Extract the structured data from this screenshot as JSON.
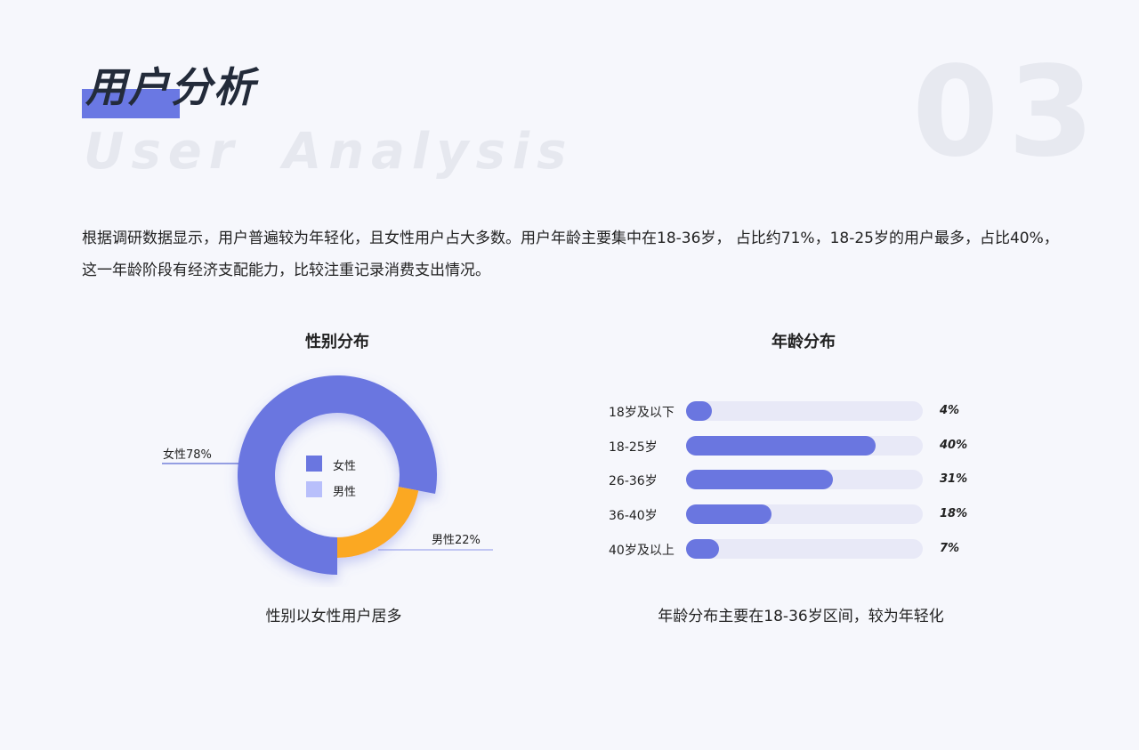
{
  "header": {
    "title": "用户分析",
    "subtitle": "User Analysis",
    "number": "03"
  },
  "description": "根据调研数据显示，用户普遍较为年轻化，且女性用户占大多数。用户年龄主要集中在18-36岁， 占比约71%，18-25岁的用户最多，占比40%，这一年龄阶段有经济支配能力，比较注重记录消费支出情况。",
  "chart_data": [
    {
      "type": "pie",
      "title": "性别分布",
      "caption": "性别以女性用户居多",
      "slices": [
        {
          "name": "女性",
          "value": 78,
          "label": "女性78%",
          "color": "#6a76e0"
        },
        {
          "name": "男性",
          "value": 22,
          "label": "男性22%",
          "color": "#fba824"
        }
      ],
      "legend": {
        "placement": "center",
        "items": [
          {
            "name": "女性",
            "color": "#6a76e0"
          },
          {
            "name": "男性",
            "color": "#b8bffb"
          }
        ]
      }
    },
    {
      "type": "bar",
      "orientation": "horizontal",
      "title": "年龄分布",
      "caption": "年龄分布主要在18-36岁区间，较为年轻化",
      "categories": [
        "18岁及以下",
        "18-25岁",
        "26-36岁",
        "36-40岁",
        "40岁及以上"
      ],
      "values": [
        4,
        40,
        31,
        18,
        7
      ],
      "value_labels": [
        "4%",
        "40%",
        "31%",
        "18%",
        "7%"
      ],
      "colors": {
        "fill": "#6a76e0",
        "track": "#e8e9f7"
      }
    }
  ]
}
